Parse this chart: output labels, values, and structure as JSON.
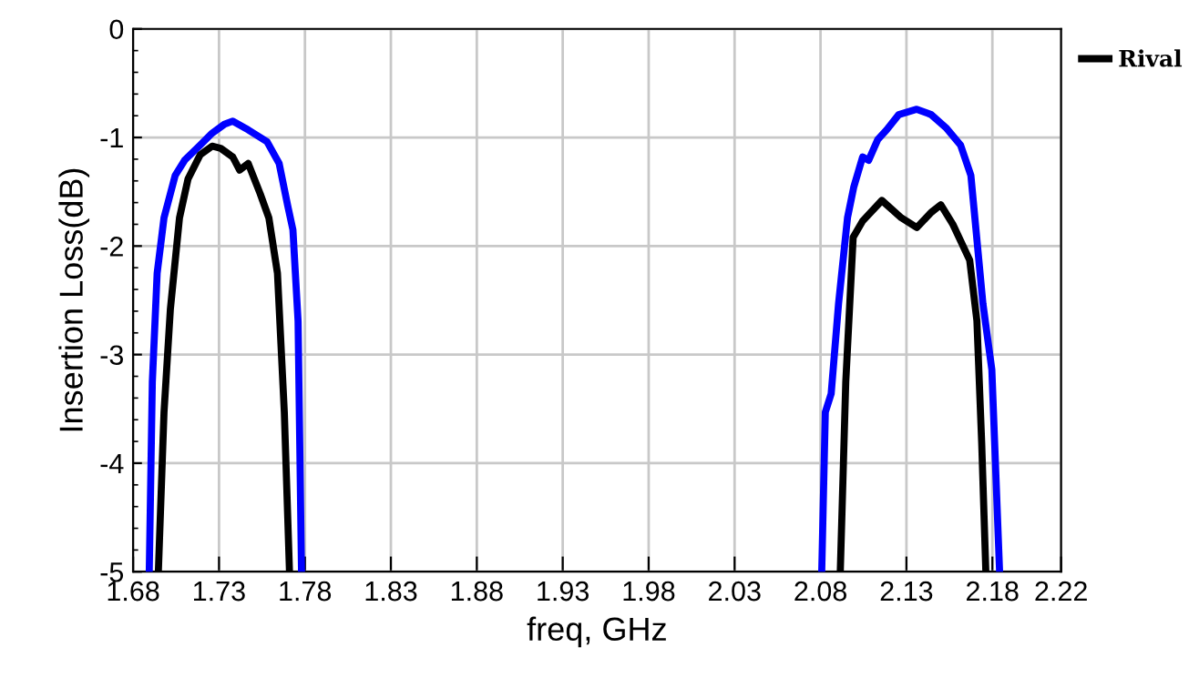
{
  "chart_data": {
    "type": "line",
    "xlabel": "freq, GHz",
    "ylabel": "Insertion Loss(dB)",
    "xlim": [
      1.68,
      2.22
    ],
    "ylim": [
      -5,
      0
    ],
    "xticks": [
      1.68,
      1.73,
      1.78,
      1.83,
      1.88,
      1.93,
      1.98,
      2.03,
      2.08,
      2.13,
      2.18,
      2.22
    ],
    "yticks": [
      -5,
      -4,
      -3,
      -2,
      -1,
      0
    ],
    "grid": true,
    "legend": "top right",
    "marker": "none",
    "line_style": "solid",
    "series": [
      {
        "color": "#0000ff",
        "x": [
          1.6894,
          1.6912,
          1.694,
          1.698,
          1.7045,
          1.71,
          1.719,
          1.726,
          1.733,
          1.738,
          1.747,
          1.758,
          1.765,
          1.77,
          1.773,
          1.776,
          1.778,
          null,
          2.0807,
          2.0828,
          2.0862,
          2.0905,
          2.0957,
          2.0993,
          2.1045,
          2.108,
          2.1133,
          2.1185,
          2.1255,
          2.136,
          2.1444,
          2.153,
          2.1615,
          2.1675,
          2.1745,
          2.1797,
          2.1842
        ],
        "values": [
          -5,
          -3.25,
          -2.25,
          -1.74,
          -1.35,
          -1.21,
          -1.07,
          -0.96,
          -0.88,
          -0.85,
          -0.93,
          -1.04,
          -1.24,
          -1.63,
          -1.85,
          -2.69,
          -5,
          null,
          -5,
          -3.53,
          -3.36,
          -2.53,
          -1.74,
          -1.46,
          -1.18,
          -1.21,
          -1.02,
          -0.93,
          -0.79,
          -0.74,
          -0.79,
          -0.91,
          -1.07,
          -1.35,
          -2.53,
          -3.14,
          -5
        ]
      },
      {
        "name": "Rival",
        "color": "#000000",
        "x": [
          1.6947,
          1.698,
          1.7017,
          1.707,
          1.712,
          1.719,
          1.726,
          1.731,
          1.738,
          1.742,
          1.747,
          1.754,
          1.759,
          1.764,
          1.768,
          1.771,
          null,
          2.0915,
          2.0947,
          2.099,
          2.1045,
          2.1157,
          2.127,
          2.136,
          2.1444,
          2.15,
          2.157,
          2.1668,
          2.171,
          2.1738,
          2.1762
        ],
        "values": [
          -5,
          -3.53,
          -2.58,
          -1.74,
          -1.38,
          -1.16,
          -1.08,
          -1.1,
          -1.18,
          -1.3,
          -1.24,
          -1.52,
          -1.74,
          -2.25,
          -3.53,
          -5,
          null,
          -5,
          -3.25,
          -1.92,
          -1.77,
          -1.58,
          -1.74,
          -1.83,
          -1.69,
          -1.62,
          -1.8,
          -2.13,
          -2.69,
          -3.82,
          -5
        ]
      }
    ]
  }
}
